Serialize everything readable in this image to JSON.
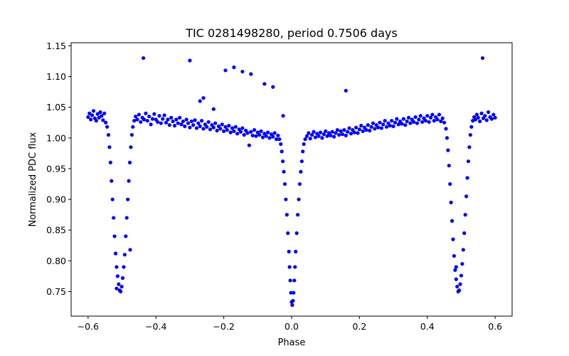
{
  "chart_data": {
    "type": "scatter",
    "title": "TIC 0281498280, period 0.7506 days",
    "xlabel": "Phase",
    "ylabel": "Normalized PDC flux",
    "xlim": [
      -0.65,
      0.65
    ],
    "ylim": [
      0.71,
      1.155
    ],
    "xticks": [
      -0.6,
      -0.4,
      -0.2,
      0.0,
      0.2,
      0.4,
      0.6
    ],
    "xtick_labels": [
      "−0.6",
      "−0.4",
      "−0.2",
      "0.0",
      "0.2",
      "0.4",
      "0.6"
    ],
    "yticks": [
      0.75,
      0.8,
      0.85,
      0.9,
      0.95,
      1.0,
      1.05,
      1.1,
      1.15
    ],
    "ytick_labels": [
      "0.75",
      "0.80",
      "0.85",
      "0.90",
      "0.95",
      "1.00",
      "1.05",
      "1.10",
      "1.15"
    ],
    "grid": false,
    "color": "#0000ff",
    "series": [
      {
        "points": [
          [
            -0.6,
            1.034
          ],
          [
            -0.596,
            1.04
          ],
          [
            -0.592,
            1.03
          ],
          [
            -0.588,
            1.037
          ],
          [
            -0.584,
            1.044
          ],
          [
            -0.58,
            1.032
          ],
          [
            -0.576,
            1.028
          ],
          [
            -0.572,
            1.039
          ],
          [
            -0.568,
            1.033
          ],
          [
            -0.564,
            1.042
          ],
          [
            -0.56,
            1.036
          ],
          [
            -0.556,
            1.029
          ],
          [
            -0.552,
            1.04
          ],
          [
            -0.548,
            1.025
          ],
          [
            -0.544,
            1.018
          ],
          [
            -0.54,
            1.005
          ],
          [
            -0.537,
            0.985
          ],
          [
            -0.534,
            0.96
          ],
          [
            -0.531,
            0.93
          ],
          [
            -0.528,
            0.9
          ],
          [
            -0.525,
            0.87
          ],
          [
            -0.522,
            0.84
          ],
          [
            -0.519,
            0.812
          ],
          [
            -0.516,
            0.79
          ],
          [
            -0.513,
            0.775
          ],
          [
            -0.51,
            0.762
          ],
          [
            -0.507,
            0.752
          ],
          [
            -0.504,
            0.75
          ],
          [
            -0.501,
            0.758
          ],
          [
            -0.498,
            0.772
          ],
          [
            -0.495,
            0.79
          ],
          [
            -0.492,
            0.81
          ],
          [
            -0.489,
            0.84
          ],
          [
            -0.486,
            0.87
          ],
          [
            -0.483,
            0.9
          ],
          [
            -0.48,
            0.93
          ],
          [
            -0.477,
            0.96
          ],
          [
            -0.474,
            0.985
          ],
          [
            -0.471,
            1.005
          ],
          [
            -0.468,
            1.018
          ],
          [
            -0.464,
            1.028
          ],
          [
            -0.46,
            1.035
          ],
          [
            -0.455,
            1.03
          ],
          [
            -0.45,
            1.038
          ],
          [
            -0.445,
            1.026
          ],
          [
            -0.44,
            1.033
          ],
          [
            -0.435,
            1.03
          ],
          [
            -0.43,
            1.04
          ],
          [
            -0.425,
            1.028
          ],
          [
            -0.42,
            1.035
          ],
          [
            -0.415,
            1.022
          ],
          [
            -0.41,
            1.031
          ],
          [
            -0.405,
            1.039
          ],
          [
            -0.4,
            1.03
          ],
          [
            -0.395,
            1.026
          ],
          [
            -0.39,
            1.036
          ],
          [
            -0.385,
            1.024
          ],
          [
            -0.38,
            1.031
          ],
          [
            -0.375,
            1.037
          ],
          [
            -0.37,
            1.025
          ],
          [
            -0.365,
            1.03
          ],
          [
            -0.36,
            1.021
          ],
          [
            -0.355,
            1.033
          ],
          [
            -0.35,
            1.027
          ],
          [
            -0.345,
            1.02
          ],
          [
            -0.34,
            1.03
          ],
          [
            -0.335,
            1.024
          ],
          [
            -0.33,
            1.033
          ],
          [
            -0.325,
            1.022
          ],
          [
            -0.32,
            1.027
          ],
          [
            -0.315,
            1.019
          ],
          [
            -0.31,
            1.03
          ],
          [
            -0.305,
            1.024
          ],
          [
            -0.3,
            1.017
          ],
          [
            -0.295,
            1.027
          ],
          [
            -0.29,
            1.021
          ],
          [
            -0.285,
            1.029
          ],
          [
            -0.28,
            1.016
          ],
          [
            -0.275,
            1.024
          ],
          [
            -0.27,
            1.019
          ],
          [
            -0.265,
            1.028
          ],
          [
            -0.26,
            1.015
          ],
          [
            -0.255,
            1.022
          ],
          [
            -0.25,
            1.018
          ],
          [
            -0.245,
            1.026
          ],
          [
            -0.24,
            1.014
          ],
          [
            -0.235,
            1.021
          ],
          [
            -0.23,
            1.017
          ],
          [
            -0.225,
            1.024
          ],
          [
            -0.22,
            1.012
          ],
          [
            -0.215,
            1.019
          ],
          [
            -0.21,
            1.015
          ],
          [
            -0.205,
            1.022
          ],
          [
            -0.2,
            1.011
          ],
          [
            -0.195,
            1.018
          ],
          [
            -0.19,
            1.013
          ],
          [
            -0.185,
            1.02
          ],
          [
            -0.18,
            1.009
          ],
          [
            -0.175,
            1.016
          ],
          [
            -0.17,
            1.011
          ],
          [
            -0.165,
            1.018
          ],
          [
            -0.16,
            1.007
          ],
          [
            -0.155,
            1.014
          ],
          [
            -0.15,
            1.01
          ],
          [
            -0.145,
            1.016
          ],
          [
            -0.14,
            1.005
          ],
          [
            -0.135,
            1.012
          ],
          [
            -0.13,
            1.008
          ],
          [
            -0.125,
            0.988
          ],
          [
            -0.12,
            1.01
          ],
          [
            -0.115,
            1.004
          ],
          [
            -0.11,
            1.013
          ],
          [
            -0.105,
            1.003
          ],
          [
            -0.1,
            1.009
          ],
          [
            -0.095,
            1.005
          ],
          [
            -0.09,
            1.011
          ],
          [
            -0.085,
            1.001
          ],
          [
            -0.08,
            1.007
          ],
          [
            -0.075,
            1.003
          ],
          [
            -0.07,
            1.009
          ],
          [
            -0.065,
            1.0
          ],
          [
            -0.06,
            1.006
          ],
          [
            -0.055,
            1.002
          ],
          [
            -0.05,
            1.008
          ],
          [
            -0.045,
            0.998
          ],
          [
            -0.04,
            1.004
          ],
          [
            -0.036,
            0.998
          ],
          [
            -0.032,
            0.99
          ],
          [
            -0.029,
            0.978
          ],
          [
            -0.026,
            0.962
          ],
          [
            -0.023,
            0.945
          ],
          [
            -0.02,
            0.925
          ],
          [
            -0.017,
            0.9
          ],
          [
            -0.014,
            0.875
          ],
          [
            -0.011,
            0.845
          ],
          [
            -0.008,
            0.815
          ],
          [
            -0.006,
            0.79
          ],
          [
            -0.004,
            0.768
          ],
          [
            -0.002,
            0.748
          ],
          [
            0.0,
            0.733
          ],
          [
            0.002,
            0.728
          ],
          [
            0.004,
            0.735
          ],
          [
            0.006,
            0.748
          ],
          [
            0.008,
            0.768
          ],
          [
            0.01,
            0.79
          ],
          [
            0.012,
            0.815
          ],
          [
            0.015,
            0.845
          ],
          [
            0.018,
            0.875
          ],
          [
            0.021,
            0.9
          ],
          [
            0.024,
            0.925
          ],
          [
            0.027,
            0.945
          ],
          [
            0.03,
            0.962
          ],
          [
            0.033,
            0.978
          ],
          [
            0.036,
            0.99
          ],
          [
            0.04,
            0.998
          ],
          [
            0.045,
            1.003
          ],
          [
            0.05,
            1.008
          ],
          [
            0.055,
            0.999
          ],
          [
            0.06,
            1.005
          ],
          [
            0.065,
            1.01
          ],
          [
            0.07,
            1.001
          ],
          [
            0.075,
            1.007
          ],
          [
            0.08,
            1.003
          ],
          [
            0.085,
            1.009
          ],
          [
            0.09,
            1.0
          ],
          [
            0.095,
            1.006
          ],
          [
            0.1,
            1.011
          ],
          [
            0.105,
            1.003
          ],
          [
            0.11,
            1.008
          ],
          [
            0.115,
            1.004
          ],
          [
            0.12,
            1.01
          ],
          [
            0.125,
            1.002
          ],
          [
            0.13,
            1.008
          ],
          [
            0.135,
            1.013
          ],
          [
            0.14,
            1.005
          ],
          [
            0.145,
            1.011
          ],
          [
            0.15,
            1.006
          ],
          [
            0.155,
            1.013
          ],
          [
            0.16,
            1.004
          ],
          [
            0.165,
            1.01
          ],
          [
            0.17,
            1.016
          ],
          [
            0.175,
            1.007
          ],
          [
            0.18,
            1.013
          ],
          [
            0.185,
            1.009
          ],
          [
            0.19,
            1.017
          ],
          [
            0.195,
            1.008
          ],
          [
            0.2,
            1.014
          ],
          [
            0.205,
            1.02
          ],
          [
            0.21,
            1.011
          ],
          [
            0.215,
            1.017
          ],
          [
            0.22,
            1.013
          ],
          [
            0.225,
            1.021
          ],
          [
            0.23,
            1.012
          ],
          [
            0.235,
            1.018
          ],
          [
            0.24,
            1.024
          ],
          [
            0.245,
            1.015
          ],
          [
            0.25,
            1.021
          ],
          [
            0.255,
            1.017
          ],
          [
            0.26,
            1.025
          ],
          [
            0.265,
            1.016
          ],
          [
            0.27,
            1.022
          ],
          [
            0.275,
            1.028
          ],
          [
            0.28,
            1.018
          ],
          [
            0.285,
            1.024
          ],
          [
            0.29,
            1.02
          ],
          [
            0.295,
            1.028
          ],
          [
            0.3,
            1.019
          ],
          [
            0.305,
            1.025
          ],
          [
            0.31,
            1.031
          ],
          [
            0.315,
            1.022
          ],
          [
            0.32,
            1.027
          ],
          [
            0.325,
            1.023
          ],
          [
            0.33,
            1.031
          ],
          [
            0.335,
            1.021
          ],
          [
            0.34,
            1.027
          ],
          [
            0.345,
            1.033
          ],
          [
            0.35,
            1.024
          ],
          [
            0.355,
            1.03
          ],
          [
            0.36,
            1.026
          ],
          [
            0.365,
            1.034
          ],
          [
            0.37,
            1.024
          ],
          [
            0.375,
            1.03
          ],
          [
            0.38,
            1.036
          ],
          [
            0.385,
            1.026
          ],
          [
            0.39,
            1.032
          ],
          [
            0.395,
            1.028
          ],
          [
            0.4,
            1.036
          ],
          [
            0.405,
            1.026
          ],
          [
            0.41,
            1.033
          ],
          [
            0.415,
            1.038
          ],
          [
            0.42,
            1.028
          ],
          [
            0.425,
            1.034
          ],
          [
            0.43,
            1.03
          ],
          [
            0.435,
            1.038
          ],
          [
            0.44,
            1.027
          ],
          [
            0.445,
            1.032
          ],
          [
            0.45,
            1.025
          ],
          [
            0.455,
            1.015
          ],
          [
            0.458,
            1.0
          ],
          [
            0.461,
            0.98
          ],
          [
            0.464,
            0.955
          ],
          [
            0.467,
            0.925
          ],
          [
            0.47,
            0.895
          ],
          [
            0.473,
            0.865
          ],
          [
            0.476,
            0.835
          ],
          [
            0.479,
            0.808
          ],
          [
            0.482,
            0.785
          ],
          [
            0.485,
            0.77
          ],
          [
            0.488,
            0.758
          ],
          [
            0.491,
            0.75
          ],
          [
            0.494,
            0.752
          ],
          [
            0.497,
            0.762
          ],
          [
            0.5,
            0.776
          ],
          [
            0.503,
            0.795
          ],
          [
            0.506,
            0.818
          ],
          [
            0.509,
            0.845
          ],
          [
            0.512,
            0.875
          ],
          [
            0.515,
            0.905
          ],
          [
            0.518,
            0.935
          ],
          [
            0.521,
            0.962
          ],
          [
            0.524,
            0.985
          ],
          [
            0.527,
            1.005
          ],
          [
            0.53,
            1.018
          ],
          [
            0.534,
            1.028
          ],
          [
            0.538,
            1.034
          ],
          [
            0.542,
            1.03
          ],
          [
            0.546,
            1.038
          ],
          [
            0.55,
            1.033
          ],
          [
            0.555,
            1.027
          ],
          [
            0.56,
            1.04
          ],
          [
            0.565,
            1.032
          ],
          [
            0.57,
            1.036
          ],
          [
            0.575,
            1.029
          ],
          [
            0.58,
            1.042
          ],
          [
            0.585,
            1.034
          ],
          [
            0.59,
            1.031
          ],
          [
            0.595,
            1.038
          ],
          [
            0.6,
            1.033
          ],
          [
            -0.437,
            1.13
          ],
          [
            -0.3,
            1.126
          ],
          [
            -0.27,
            1.06
          ],
          [
            -0.26,
            1.065
          ],
          [
            -0.23,
            1.047
          ],
          [
            -0.195,
            1.11
          ],
          [
            -0.17,
            1.115
          ],
          [
            -0.145,
            1.108
          ],
          [
            -0.12,
            1.104
          ],
          [
            -0.08,
            1.088
          ],
          [
            -0.055,
            1.083
          ],
          [
            -0.025,
            1.036
          ],
          [
            0.16,
            1.077
          ],
          [
            0.563,
            1.13
          ],
          [
            -0.476,
            0.818
          ],
          [
            -0.516,
            0.755
          ],
          [
            0.485,
            0.79
          ]
        ]
      }
    ]
  }
}
